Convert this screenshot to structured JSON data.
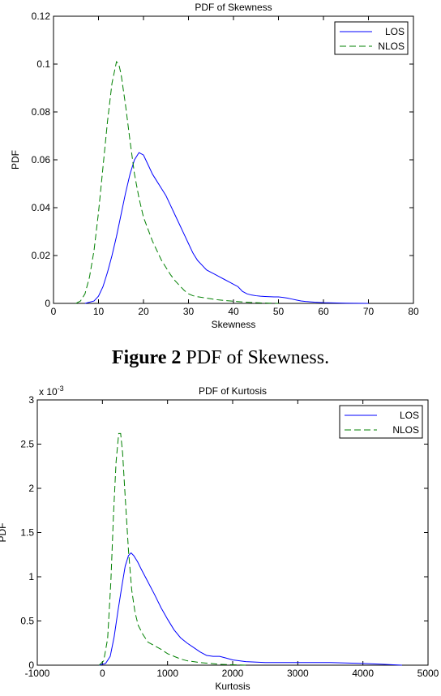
{
  "caption": {
    "label": "Figure 2",
    "text": " PDF of Skewness."
  },
  "chart_data": [
    {
      "type": "line",
      "title": "PDF of Skewness",
      "xlabel": "Skewness",
      "ylabel": "PDF",
      "xlim": [
        0,
        80
      ],
      "ylim": [
        0,
        0.12
      ],
      "xticks": [
        0,
        10,
        20,
        30,
        40,
        50,
        60,
        70,
        80
      ],
      "xtick_labels": [
        "0",
        "10",
        "20",
        "30",
        "40",
        "50",
        "60",
        "70",
        "80"
      ],
      "yticks": [
        0,
        0.02,
        0.04,
        0.06,
        0.08,
        0.1,
        0.12
      ],
      "ytick_labels": [
        "0",
        "0.02",
        "0.04",
        "0.06",
        "0.08",
        "0.1",
        "0.12"
      ],
      "exponent": "",
      "grid": false,
      "legend": "top-right",
      "series": [
        {
          "name": "LOS",
          "color": "#0000ff",
          "dash": "solid",
          "points": [
            [
              7,
              0
            ],
            [
              9,
              0.001
            ],
            [
              10,
              0.003
            ],
            [
              11,
              0.007
            ],
            [
              12,
              0.013
            ],
            [
              13,
              0.02
            ],
            [
              14,
              0.028
            ],
            [
              15,
              0.037
            ],
            [
              16,
              0.046
            ],
            [
              17,
              0.054
            ],
            [
              18,
              0.06
            ],
            [
              19,
              0.063
            ],
            [
              20,
              0.062
            ],
            [
              21,
              0.058
            ],
            [
              22,
              0.054
            ],
            [
              23,
              0.051
            ],
            [
              24,
              0.048
            ],
            [
              25,
              0.045
            ],
            [
              26,
              0.041
            ],
            [
              27,
              0.037
            ],
            [
              28,
              0.033
            ],
            [
              29,
              0.029
            ],
            [
              30,
              0.025
            ],
            [
              31,
              0.021
            ],
            [
              32,
              0.018
            ],
            [
              33,
              0.016
            ],
            [
              34,
              0.014
            ],
            [
              35,
              0.013
            ],
            [
              36,
              0.012
            ],
            [
              37,
              0.011
            ],
            [
              38,
              0.01
            ],
            [
              39,
              0.009
            ],
            [
              40,
              0.008
            ],
            [
              41,
              0.007
            ],
            [
              42,
              0.005
            ],
            [
              43,
              0.004
            ],
            [
              44,
              0.0035
            ],
            [
              45,
              0.0032
            ],
            [
              46,
              0.003
            ],
            [
              47,
              0.0029
            ],
            [
              48,
              0.0028
            ],
            [
              49,
              0.0027
            ],
            [
              50,
              0.0027
            ],
            [
              51,
              0.0025
            ],
            [
              52,
              0.0022
            ],
            [
              53,
              0.0018
            ],
            [
              54,
              0.0014
            ],
            [
              55,
              0.001
            ],
            [
              56,
              0.0008
            ],
            [
              58,
              0.0005
            ],
            [
              60,
              0.0003
            ],
            [
              62,
              0.0002
            ],
            [
              65,
              0.0001
            ],
            [
              70,
              0
            ]
          ]
        },
        {
          "name": "NLOS",
          "color": "#008000",
          "dash": "dashed",
          "points": [
            [
              5,
              0
            ],
            [
              6,
              0.001
            ],
            [
              7,
              0.004
            ],
            [
              8,
              0.011
            ],
            [
              9,
              0.022
            ],
            [
              10,
              0.038
            ],
            [
              11,
              0.057
            ],
            [
              12,
              0.076
            ],
            [
              13,
              0.092
            ],
            [
              14,
              0.101
            ],
            [
              14.5,
              0.1
            ],
            [
              15,
              0.096
            ],
            [
              16,
              0.083
            ],
            [
              17,
              0.068
            ],
            [
              18,
              0.054
            ],
            [
              19,
              0.044
            ],
            [
              20,
              0.036
            ],
            [
              21,
              0.031
            ],
            [
              22,
              0.026
            ],
            [
              23,
              0.022
            ],
            [
              24,
              0.018
            ],
            [
              25,
              0.015
            ],
            [
              26,
              0.012
            ],
            [
              27,
              0.0095
            ],
            [
              28,
              0.0075
            ],
            [
              29,
              0.0055
            ],
            [
              30,
              0.004
            ],
            [
              31,
              0.0032
            ],
            [
              32,
              0.0028
            ],
            [
              33,
              0.0025
            ],
            [
              34,
              0.0022
            ],
            [
              35,
              0.0019
            ],
            [
              36,
              0.0016
            ],
            [
              37,
              0.0014
            ],
            [
              38,
              0.0012
            ],
            [
              40,
              0.0009
            ],
            [
              42,
              0.0006
            ],
            [
              44,
              0.0004
            ],
            [
              46,
              0.0002
            ],
            [
              48,
              0.0001
            ],
            [
              50,
              0
            ]
          ]
        }
      ]
    },
    {
      "type": "line",
      "title": "PDF of Kurtosis",
      "xlabel": "Kurtosis",
      "ylabel": "PDF",
      "xlim": [
        -1000,
        5000
      ],
      "ylim": [
        0,
        0.003
      ],
      "xticks": [
        -1000,
        0,
        1000,
        2000,
        3000,
        4000,
        5000
      ],
      "xtick_labels": [
        "-1000",
        "0",
        "1000",
        "2000",
        "3000",
        "4000",
        "5000"
      ],
      "yticks": [
        0,
        0.0005,
        0.001,
        0.0015,
        0.002,
        0.0025,
        0.003
      ],
      "ytick_labels": [
        "0",
        "0.5",
        "1",
        "1.5",
        "2",
        "2.5",
        "3"
      ],
      "exponent": "x 10",
      "exponent_sup": "-3",
      "grid": false,
      "legend": "top-right",
      "series": [
        {
          "name": "LOS",
          "color": "#0000ff",
          "dash": "solid",
          "points": [
            [
              -50,
              0
            ],
            [
              50,
              2e-05
            ],
            [
              120,
              0.0001
            ],
            [
              180,
              0.00032
            ],
            [
              240,
              0.00062
            ],
            [
              300,
              0.0009
            ],
            [
              350,
              0.00112
            ],
            [
              400,
              0.00124
            ],
            [
              440,
              0.00127
            ],
            [
              480,
              0.00124
            ],
            [
              540,
              0.00117
            ],
            [
              600,
              0.00108
            ],
            [
              700,
              0.00094
            ],
            [
              800,
              0.0008
            ],
            [
              900,
              0.00065
            ],
            [
              1000,
              0.00052
            ],
            [
              1100,
              0.0004
            ],
            [
              1200,
              0.00031
            ],
            [
              1300,
              0.00025
            ],
            [
              1400,
              0.0002
            ],
            [
              1500,
              0.00015
            ],
            [
              1600,
              0.00011
            ],
            [
              1700,
              0.0001
            ],
            [
              1800,
              0.0001
            ],
            [
              1900,
              8e-05
            ],
            [
              2000,
              6e-05
            ],
            [
              2200,
              4e-05
            ],
            [
              2500,
              3e-05
            ],
            [
              2800,
              3e-05
            ],
            [
              3000,
              3e-05
            ],
            [
              3500,
              3e-05
            ],
            [
              4000,
              2e-05
            ],
            [
              4300,
              1e-05
            ],
            [
              4600,
              0
            ]
          ]
        },
        {
          "name": "NLOS",
          "color": "#008000",
          "dash": "dashed",
          "points": [
            [
              -50,
              0
            ],
            [
              20,
              5e-05
            ],
            [
              80,
              0.0003
            ],
            [
              130,
              0.00095
            ],
            [
              170,
              0.0017
            ],
            [
              210,
              0.0023
            ],
            [
              250,
              0.00262
            ],
            [
              280,
              0.00262
            ],
            [
              310,
              0.0024
            ],
            [
              350,
              0.0019
            ],
            [
              400,
              0.0013
            ],
            [
              450,
              0.00085
            ],
            [
              500,
              0.0006
            ],
            [
              550,
              0.00045
            ],
            [
              620,
              0.00035
            ],
            [
              700,
              0.00026
            ],
            [
              800,
              0.00022
            ],
            [
              900,
              0.00018
            ],
            [
              1000,
              0.00013
            ],
            [
              1100,
              0.0001
            ],
            [
              1200,
              7e-05
            ],
            [
              1300,
              5e-05
            ],
            [
              1500,
              3e-05
            ],
            [
              1800,
              1e-05
            ],
            [
              2200,
              0
            ]
          ]
        }
      ]
    }
  ]
}
